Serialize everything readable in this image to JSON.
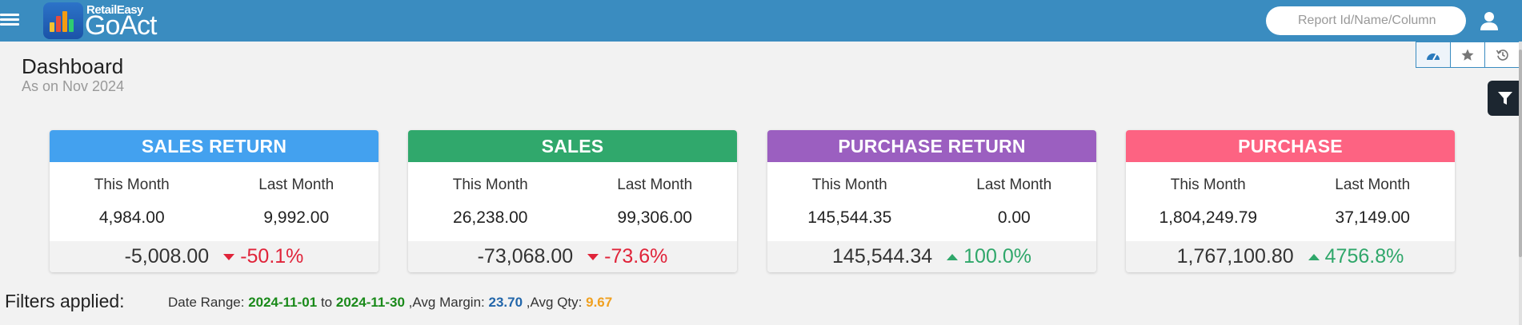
{
  "app": {
    "logo_small": "RetailEasy",
    "logo_big": "GoAct"
  },
  "search": {
    "placeholder": "Report Id/Name/Column",
    "value": ""
  },
  "page": {
    "title": "Dashboard",
    "subtitle": "As on Nov 2024"
  },
  "colors": {
    "topbar": "#3a8cc0",
    "negative": "#e0243a",
    "positive": "#2fa76a"
  },
  "cards": [
    {
      "title": "SALES RETURN",
      "color": "#43a1ef",
      "this_month_label": "This Month",
      "last_month_label": "Last Month",
      "this_month": "4,984.00",
      "last_month": "9,992.00",
      "difference": "-5,008.00",
      "change": "-50.1%",
      "trend": "down"
    },
    {
      "title": "SALES",
      "color": "#30a86c",
      "this_month_label": "This Month",
      "last_month_label": "Last Month",
      "this_month": "26,238.00",
      "last_month": "99,306.00",
      "difference": "-73,068.00",
      "change": "-73.6%",
      "trend": "down"
    },
    {
      "title": "PURCHASE RETURN",
      "color": "#9b5fc0",
      "this_month_label": "This Month",
      "last_month_label": "Last Month",
      "this_month": "145,544.35",
      "last_month": "0.00",
      "difference": "145,544.34",
      "change": "100.0%",
      "trend": "up"
    },
    {
      "title": "PURCHASE",
      "color": "#fd6382",
      "this_month_label": "This Month",
      "last_month_label": "Last Month",
      "this_month": "1,804,249.79",
      "last_month": "37,149.00",
      "difference": "1,767,100.80",
      "change": "4756.8%",
      "trend": "up"
    }
  ],
  "filters": {
    "label": "Filters applied:",
    "date_range_label": "Date Range:",
    "date_from": "2024-11-01",
    "to_label": "to",
    "date_to": "2024-11-30",
    "avg_margin_label": ",Avg Margin:",
    "avg_margin": "23.70",
    "avg_qty_label": ",Avg Qty:",
    "avg_qty": "9.67"
  },
  "icons": [
    "menu-icon",
    "search-icon",
    "user-icon",
    "dashboard-icon",
    "star-icon",
    "history-icon",
    "filter-icon"
  ]
}
